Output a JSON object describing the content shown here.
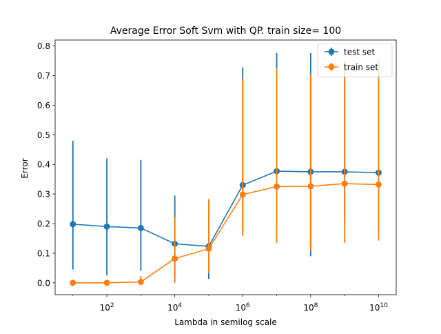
{
  "chart_data": {
    "type": "line",
    "title": "Average Error Soft Svm with QP. train size= 100",
    "xlabel": "Lambda in semilog scale",
    "ylabel": "Error",
    "x_scale": "log",
    "xlim": [
      3,
      33000000000
    ],
    "ylim": [
      -0.04,
      0.82
    ],
    "x": [
      10,
      100,
      1000,
      10000,
      100000,
      1000000,
      10000000,
      100000000,
      1000000000,
      10000000000
    ],
    "x_ticks": [
      {
        "value": 100,
        "base": "10",
        "exp": "2"
      },
      {
        "value": 10000,
        "base": "10",
        "exp": "4"
      },
      {
        "value": 1000000,
        "base": "10",
        "exp": "6"
      },
      {
        "value": 100000000,
        "base": "10",
        "exp": "8"
      },
      {
        "value": 10000000000,
        "base": "10",
        "exp": "10"
      }
    ],
    "y_ticks": [
      0.0,
      0.1,
      0.2,
      0.3,
      0.4,
      0.5,
      0.6,
      0.7,
      0.8
    ],
    "y_tick_labels": [
      "0.0",
      "0.1",
      "0.2",
      "0.3",
      "0.4",
      "0.5",
      "0.6",
      "0.7",
      "0.8"
    ],
    "grid": false,
    "legend_position": "top-right",
    "series": [
      {
        "name": "test set",
        "color": "#1f77b4",
        "values": [
          0.198,
          0.19,
          0.185,
          0.132,
          0.123,
          0.33,
          0.377,
          0.375,
          0.375,
          0.372
        ],
        "err_low": [
          0.045,
          0.025,
          0.04,
          0.017,
          0.013,
          0.17,
          0.195,
          0.09,
          0.2,
          0.18
        ],
        "err_high": [
          0.48,
          0.42,
          0.415,
          0.295,
          0.27,
          0.728,
          0.776,
          0.776,
          0.74,
          0.752
        ]
      },
      {
        "name": "train set",
        "color": "#ff7f0e",
        "values": [
          0.0,
          0.0,
          0.003,
          0.082,
          0.115,
          0.298,
          0.325,
          0.326,
          0.335,
          0.332
        ],
        "err_low": [
          0.0,
          0.0,
          0.0,
          0.0,
          0.033,
          0.158,
          0.135,
          0.11,
          0.135,
          0.143
        ],
        "err_high": [
          0.0,
          0.0,
          0.023,
          0.222,
          0.283,
          0.688,
          0.725,
          0.705,
          0.748,
          0.748
        ]
      }
    ]
  }
}
